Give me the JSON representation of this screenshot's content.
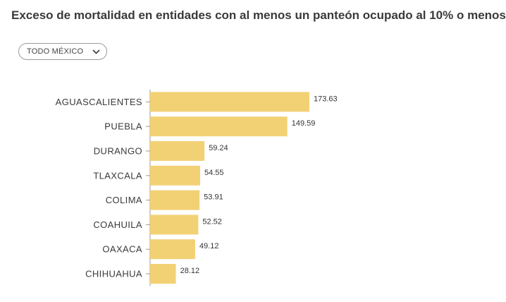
{
  "title": "Exceso de mortalidad en entidades con al menos un panteón ocupado al 10% o menos",
  "filter": {
    "selected": "TODO MÉXICO"
  },
  "colors": {
    "bar": "#f2d175",
    "axis": "#9a9a9a",
    "text": "#3a3a3a"
  },
  "chart_data": {
    "type": "bar",
    "orientation": "horizontal",
    "categories": [
      "AGUASCALIENTES",
      "PUEBLA",
      "DURANGO",
      "TLAXCALA",
      "COLIMA",
      "COAHUILA",
      "OAXACA",
      "CHIHUAHUA"
    ],
    "values": [
      173.63,
      149.59,
      59.24,
      54.55,
      53.91,
      52.52,
      49.12,
      28.12
    ],
    "value_labels": [
      "173.63",
      "149.59",
      "59.24",
      "54.55",
      "53.91",
      "52.52",
      "49.12",
      "28.12"
    ],
    "xlim": [
      0,
      173.63
    ],
    "grid": false,
    "legend": "none"
  }
}
